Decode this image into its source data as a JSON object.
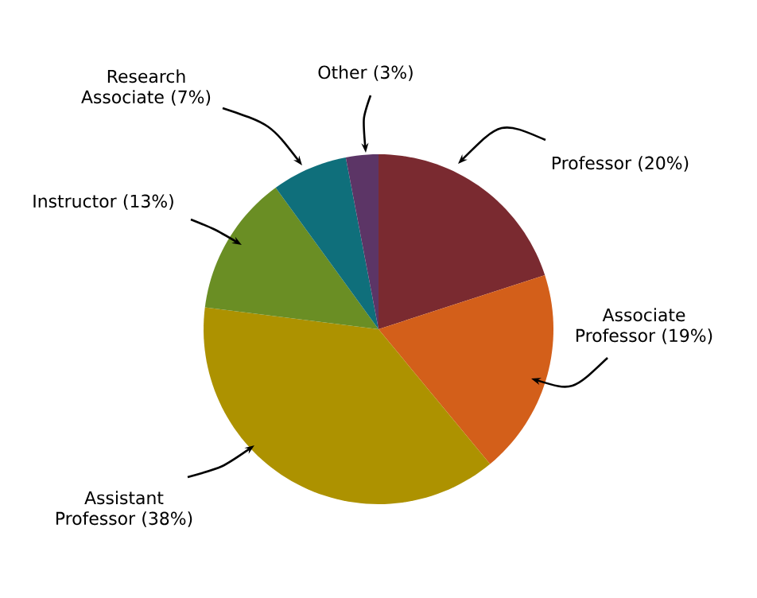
{
  "chart_data": {
    "type": "pie",
    "categories": [
      "Professor (20%)",
      "Associate Professor (19%)",
      "Assistant Professor (38%)",
      "Instructor (13%)",
      "Research Associate (7%)",
      "Other (3%)"
    ],
    "values": [
      20,
      19,
      38,
      13,
      7,
      3
    ],
    "colors": [
      "#7a2a30",
      "#d35f1a",
      "#ad9200",
      "#6a8e24",
      "#0f6f7b",
      "#5c3566"
    ]
  }
}
